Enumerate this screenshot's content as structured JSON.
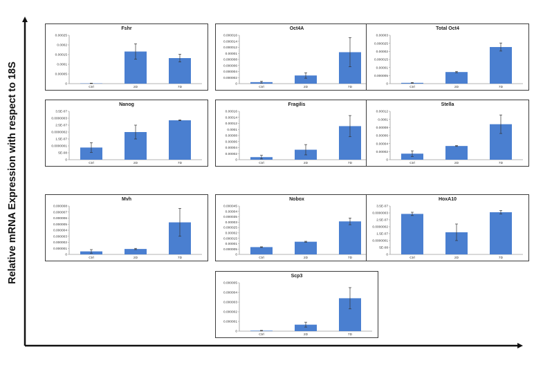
{
  "figure": {
    "ylabel": "Relative mRNA Expression with respect to 18S",
    "bar_color": "#4a7fd0",
    "error_color": "#333333"
  },
  "chart_data": [
    {
      "type": "bar",
      "title": "Fshr",
      "categories": [
        "Ctrl",
        "2D",
        "7D"
      ],
      "values": [
        1.5e-06,
        0.000166,
        0.000132
      ],
      "errors": [
        1e-06,
        4e-05,
        2e-05
      ],
      "ylim": [
        0,
        0.00025
      ],
      "yticks": [
        0,
        5e-05,
        0.0001,
        0.00015,
        0.0002,
        0.00025
      ],
      "yticklabels": [
        "0",
        "0.00005",
        "0.0001",
        "0.00015",
        "0.0002",
        "0.00025"
      ]
    },
    {
      "type": "bar",
      "title": "Oct4A",
      "categories": [
        "Ctrl",
        "2D",
        "7D"
      ],
      "values": [
        5e-07,
        2.7e-06,
        1.04e-05
      ],
      "errors": [
        3e-07,
        9e-07,
        4.8e-06
      ],
      "ylim": [
        0,
        1.6e-05
      ],
      "yticks": [
        0,
        2e-06,
        4e-06,
        6e-06,
        8e-06,
        1e-05,
        1.2e-05,
        1.4e-05,
        1.6e-05
      ],
      "yticklabels": [
        "0",
        "0.000002",
        "0.000004",
        "0.000006",
        "0.000008",
        "0.00001",
        "0.000012",
        "0.000014",
        "0.000016"
      ]
    },
    {
      "type": "bar",
      "title": "Total Oct4",
      "categories": [
        "Ctrl",
        "2D",
        "7D"
      ],
      "values": [
        5e-07,
        7.2e-06,
        2.27e-05
      ],
      "errors": [
        2e-07,
        4e-07,
        2.5e-06
      ],
      "ylim": [
        0,
        3e-05
      ],
      "yticks": [
        0,
        5e-06,
        1e-05,
        1.5e-05,
        2e-05,
        2.5e-05,
        3e-05
      ],
      "yticklabels": [
        "0",
        "0.000005",
        "0.00001",
        "0.000015",
        "0.00002",
        "0.000025",
        "0.00003"
      ]
    },
    {
      "type": "bar",
      "title": "Nanog",
      "categories": [
        "Ctrl",
        "2D",
        "7D"
      ],
      "values": [
        8.8e-08,
        2e-07,
        2.85e-07
      ],
      "errors": [
        3.5e-08,
        5e-08,
        3e-09
      ],
      "ylim": [
        0,
        3.5e-07
      ],
      "yticks": [
        0,
        5e-08,
        1e-07,
        1.5e-07,
        2e-07,
        2.5e-07,
        3e-07,
        3.5e-07
      ],
      "yticklabels": [
        "0",
        "5E-08",
        "0.0000001",
        "1.5E-07",
        "0.0000002",
        "2.5E-07",
        "0.0000003",
        "3.5E-07"
      ]
    },
    {
      "type": "bar",
      "title": "Fragilis",
      "categories": [
        "Ctrl",
        "2D",
        "7D"
      ],
      "values": [
        8.5e-06,
        3.3e-05,
        0.000111
      ],
      "errors": [
        6e-06,
        1.7e-05,
        3.5e-05
      ],
      "ylim": [
        0,
        0.00016
      ],
      "yticks": [
        0,
        2e-05,
        4e-05,
        6e-05,
        8e-05,
        0.0001,
        0.00012,
        0.00014,
        0.00016
      ],
      "yticklabels": [
        "0",
        "0.00002",
        "0.00004",
        "0.00006",
        "0.00008",
        "0.0001",
        "0.00012",
        "0.00014",
        "0.00016"
      ]
    },
    {
      "type": "bar",
      "title": "Stella",
      "categories": [
        "Ctrl",
        "2D",
        "7D"
      ],
      "values": [
        1.5e-05,
        3.4e-05,
        8.8e-05
      ],
      "errors": [
        7e-06,
        1e-06,
        2.3e-05
      ],
      "ylim": [
        0,
        0.00012
      ],
      "yticks": [
        0,
        2e-05,
        4e-05,
        6e-05,
        8e-05,
        0.0001,
        0.00012
      ],
      "yticklabels": [
        "0",
        "0.00002",
        "0.00004",
        "0.00006",
        "0.00008",
        "0.0001",
        "0.00012"
      ]
    },
    {
      "type": "bar",
      "title": "Mvh",
      "categories": [
        "Ctrl",
        "2D",
        "7D"
      ],
      "values": [
        5e-07,
        9e-07,
        5.3e-06
      ],
      "errors": [
        3e-07,
        1e-07,
        2.3e-06
      ],
      "ylim": [
        0,
        8e-06
      ],
      "yticks": [
        0,
        1e-06,
        2e-06,
        3e-06,
        4e-06,
        5e-06,
        6e-06,
        7e-06,
        8e-06
      ],
      "yticklabels": [
        "0",
        "0.000001",
        "0.000002",
        "0.000003",
        "0.000004",
        "0.000005",
        "0.000006",
        "0.000007",
        "0.000008"
      ]
    },
    {
      "type": "bar",
      "title": "Nobox",
      "categories": [
        "Ctrl",
        "2D",
        "7D"
      ],
      "values": [
        6.8e-06,
        1.18e-05,
        3.07e-05
      ],
      "errors": [
        3e-07,
        4e-07,
        3.1e-06
      ],
      "ylim": [
        0,
        4.5e-05
      ],
      "yticks": [
        0,
        5e-06,
        1e-05,
        1.5e-05,
        2e-05,
        2.5e-05,
        3e-05,
        3.5e-05,
        4e-05,
        4.5e-05
      ],
      "yticklabels": [
        "0",
        "0.000005",
        "0.00001",
        "0.000015",
        "0.00002",
        "0.000025",
        "0.00003",
        "0.000035",
        "0.00004",
        "0.000045"
      ]
    },
    {
      "type": "bar",
      "title": "HoxA10",
      "categories": [
        "Ctrl",
        "2D",
        "7D"
      ],
      "values": [
        2.93e-07,
        1.6e-07,
        3.05e-07
      ],
      "errors": [
        1.2e-08,
        6e-08,
        1.2e-08
      ],
      "ylim": [
        0,
        3.5e-07
      ],
      "yticks": [
        0,
        5e-08,
        1e-07,
        1.5e-07,
        2e-07,
        2.5e-07,
        3e-07,
        3.5e-07
      ],
      "yticklabels": [
        "0",
        "5E-08",
        "0.0000001",
        "1.5E-07",
        "0.0000002",
        "2.5E-07",
        "0.0000003",
        "3.5E-07"
      ]
    },
    {
      "type": "bar",
      "title": "Scp3",
      "categories": [
        "Ctrl",
        "2D",
        "7D"
      ],
      "values": [
        5e-08,
        6.7e-07,
        3.4e-06
      ],
      "errors": [
        3e-08,
        2.5e-07,
        1.1e-06
      ],
      "ylim": [
        0,
        5e-06
      ],
      "yticks": [
        0,
        1e-06,
        2e-06,
        3e-06,
        4e-06,
        5e-06
      ],
      "yticklabels": [
        "0",
        "0.000001",
        "0.000002",
        "0.000003",
        "0.000004",
        "0.000005"
      ]
    }
  ]
}
